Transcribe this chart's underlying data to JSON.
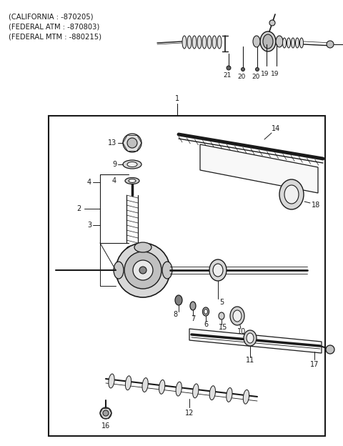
{
  "bg_color": "#ffffff",
  "line_color": "#1a1a1a",
  "text_color": "#1a1a1a",
  "header_lines": [
    "(CALIFORNIA : -870205)",
    "(FEDERAL ATM : -870803)",
    "(FEDERAL MTM : -880215)"
  ],
  "header_fontsize": 7.2,
  "label_fontsize": 7.0,
  "fig_w": 4.8,
  "fig_h": 6.24,
  "dpi": 100
}
